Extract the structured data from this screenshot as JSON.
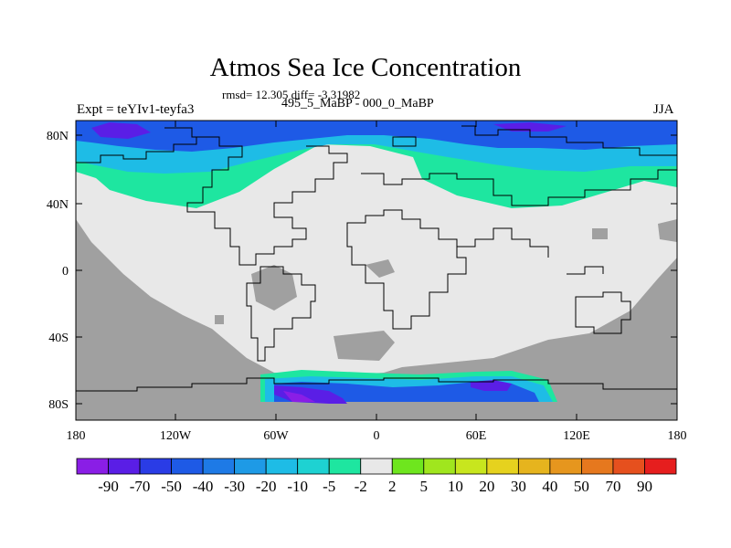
{
  "title": "Atmos Sea Ice Concentration",
  "stats": "rmsd= 12.305 diff= -3.31982",
  "periods": "495_5_MaBP - 000_0_MaBP",
  "expt": "Expt = teYIv1-teyfa3",
  "season": "JJA",
  "lon_ticks": [
    "180",
    "120W",
    "60W",
    "0",
    "60E",
    "120E",
    "180"
  ],
  "lat_ticks": [
    "80N",
    "40N",
    "0",
    "40S",
    "80S"
  ],
  "colorbar": {
    "labels": [
      "-90",
      "-70",
      "-50",
      "-40",
      "-30",
      "-20",
      "-10",
      "-5",
      "-2",
      "2",
      "5",
      "10",
      "20",
      "30",
      "40",
      "50",
      "70",
      "90"
    ],
    "colors": [
      "#8a1ee6",
      "#5a1ee6",
      "#2a3ce6",
      "#1e5ae6",
      "#1e7ae6",
      "#1e9ae6",
      "#1ebce6",
      "#1ed2d2",
      "#1ee6a0",
      "#e8e8e8",
      "#6ee61e",
      "#a0e61e",
      "#c8e61e",
      "#e6d21e",
      "#e6b41e",
      "#e6961e",
      "#e6781e",
      "#e6501e",
      "#e61e1e"
    ]
  },
  "map_colors": {
    "land": "#e8e8e8",
    "no_data": "#a0a0a0",
    "ice_loss_light": "#1ee6a0",
    "ice_loss_mid": "#1ebce6",
    "ice_loss_strong": "#1e5ae6",
    "ice_loss_max": "#5a1ee6",
    "ice_loss_extreme": "#8a1ee6",
    "coast": "#000000"
  }
}
